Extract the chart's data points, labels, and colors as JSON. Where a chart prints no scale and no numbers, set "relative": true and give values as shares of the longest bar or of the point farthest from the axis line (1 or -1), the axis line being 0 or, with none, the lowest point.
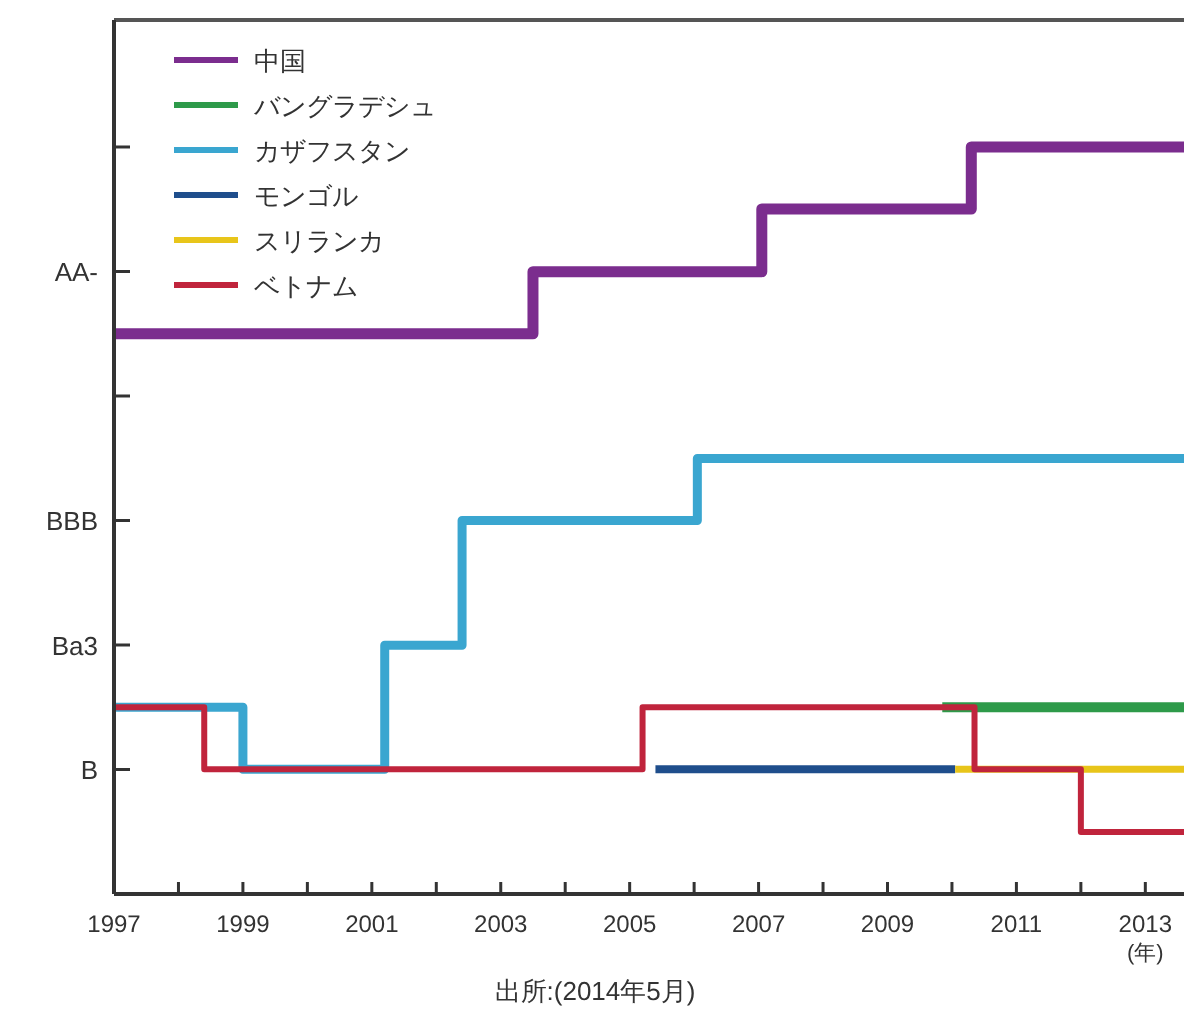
{
  "chart_data": {
    "type": "step",
    "relative": true,
    "xlim": [
      1997,
      2013.6
    ],
    "xticks": [
      1997,
      {
        "value": 1998,
        "label": null
      },
      1999,
      {
        "value": 2000,
        "label": null
      },
      2001,
      {
        "value": 2002,
        "label": null
      },
      2003,
      {
        "value": 2004,
        "label": null
      },
      2005,
      {
        "value": 2006,
        "label": null
      },
      2007,
      {
        "value": 2008,
        "label": null
      },
      2009,
      {
        "value": 2010,
        "label": null
      },
      2011,
      {
        "value": 2012,
        "label": null
      },
      2013
    ],
    "xlabel": "(年)",
    "grid": false,
    "legend": "top left",
    "marker": "none",
    "line_style": "solid",
    "series": [
      {
        "name": "中国",
        "color": "#7b2d8e",
        "x": [
          1997,
          2003.5,
          2007.05,
          2010.3,
          2013.6
        ],
        "values": [
          0.75,
          0.833,
          0.917,
          1,
          1
        ]
      },
      {
        "name": "バングラデシュ",
        "color": "#2e9a4a",
        "x": [
          2009.85,
          2013.6
        ],
        "values": [
          0.25,
          0.25
        ]
      },
      {
        "name": "カザフスタン",
        "color": "#3aa6d0",
        "x": [
          1997,
          1999,
          2001.2,
          2002.4,
          2006.05,
          2013.6
        ],
        "values": [
          0.25,
          0.167,
          0.333,
          0.5,
          0.583,
          0.583
        ]
      },
      {
        "name": "モンゴル",
        "color": "#1f4e8c",
        "x": [
          2005.4,
          2010.05
        ],
        "values": [
          0.167,
          0.167
        ]
      },
      {
        "name": "スリランカ",
        "color": "#e8c51a",
        "x": [
          2010.05,
          2013.6
        ],
        "values": [
          0.167,
          0.167
        ]
      },
      {
        "name": "ベトナム",
        "color": "#c0243c",
        "x": [
          1997,
          1998.4,
          2005.2,
          2010.35,
          2012,
          2013.6
        ],
        "values": [
          0.25,
          0.167,
          0.25,
          0.167,
          0.083,
          0.083
        ]
      }
    ],
    "annotations": [
      "B",
      "Ba3",
      "BBB",
      "AA-",
      "出所:(2014年5月)"
    ]
  }
}
